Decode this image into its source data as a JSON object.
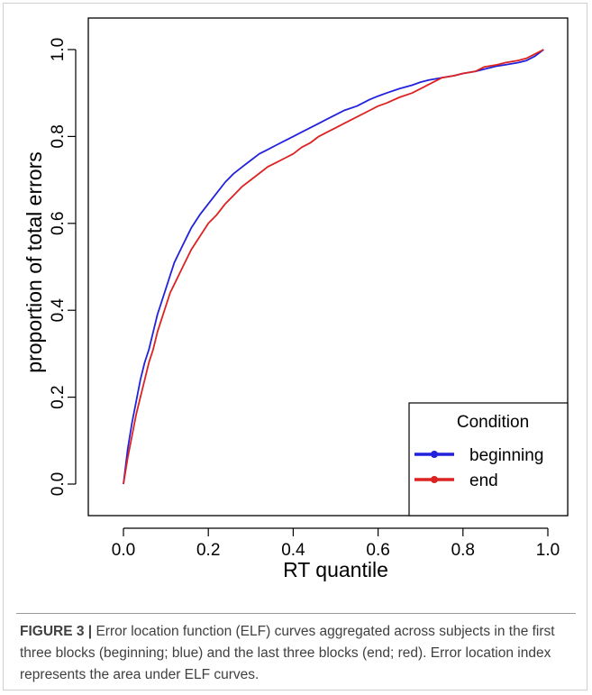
{
  "chart_data": {
    "type": "line",
    "title": "",
    "xlabel": "RT quantile",
    "ylabel": "proportion of total errors",
    "xlim": [
      0.0,
      1.0
    ],
    "ylim": [
      0.0,
      1.0
    ],
    "xticks": [
      "0.0",
      "0.2",
      "0.4",
      "0.6",
      "0.8",
      "1.0"
    ],
    "yticks": [
      "0.0",
      "0.2",
      "0.4",
      "0.6",
      "0.8",
      "1.0"
    ],
    "grid": false,
    "legend": {
      "title": "Condition",
      "position": "bottom-right"
    },
    "series": [
      {
        "name": "beginning",
        "color": "#2222dd",
        "points": [
          [
            0.0,
            0.0
          ],
          [
            0.01,
            0.08
          ],
          [
            0.02,
            0.14
          ],
          [
            0.03,
            0.19
          ],
          [
            0.04,
            0.24
          ],
          [
            0.05,
            0.28
          ],
          [
            0.06,
            0.31
          ],
          [
            0.07,
            0.35
          ],
          [
            0.08,
            0.39
          ],
          [
            0.09,
            0.42
          ],
          [
            0.1,
            0.45
          ],
          [
            0.11,
            0.48
          ],
          [
            0.12,
            0.51
          ],
          [
            0.13,
            0.53
          ],
          [
            0.14,
            0.55
          ],
          [
            0.15,
            0.57
          ],
          [
            0.16,
            0.59
          ],
          [
            0.18,
            0.62
          ],
          [
            0.2,
            0.645
          ],
          [
            0.22,
            0.67
          ],
          [
            0.24,
            0.695
          ],
          [
            0.26,
            0.715
          ],
          [
            0.28,
            0.73
          ],
          [
            0.3,
            0.745
          ],
          [
            0.32,
            0.76
          ],
          [
            0.34,
            0.77
          ],
          [
            0.36,
            0.78
          ],
          [
            0.38,
            0.79
          ],
          [
            0.4,
            0.8
          ],
          [
            0.42,
            0.81
          ],
          [
            0.44,
            0.82
          ],
          [
            0.46,
            0.83
          ],
          [
            0.48,
            0.84
          ],
          [
            0.5,
            0.85
          ],
          [
            0.52,
            0.86
          ],
          [
            0.55,
            0.87
          ],
          [
            0.58,
            0.885
          ],
          [
            0.6,
            0.893
          ],
          [
            0.62,
            0.9
          ],
          [
            0.65,
            0.91
          ],
          [
            0.68,
            0.918
          ],
          [
            0.7,
            0.925
          ],
          [
            0.72,
            0.93
          ],
          [
            0.75,
            0.935
          ],
          [
            0.78,
            0.94
          ],
          [
            0.8,
            0.945
          ],
          [
            0.83,
            0.95
          ],
          [
            0.85,
            0.955
          ],
          [
            0.88,
            0.962
          ],
          [
            0.9,
            0.965
          ],
          [
            0.93,
            0.97
          ],
          [
            0.95,
            0.975
          ],
          [
            0.97,
            0.985
          ],
          [
            0.99,
            1.0
          ]
        ]
      },
      {
        "name": "end",
        "color": "#dd2222",
        "points": [
          [
            0.0,
            0.0
          ],
          [
            0.01,
            0.06
          ],
          [
            0.02,
            0.11
          ],
          [
            0.03,
            0.16
          ],
          [
            0.04,
            0.2
          ],
          [
            0.05,
            0.24
          ],
          [
            0.06,
            0.28
          ],
          [
            0.07,
            0.31
          ],
          [
            0.08,
            0.35
          ],
          [
            0.09,
            0.38
          ],
          [
            0.1,
            0.41
          ],
          [
            0.11,
            0.44
          ],
          [
            0.12,
            0.46
          ],
          [
            0.13,
            0.48
          ],
          [
            0.14,
            0.5
          ],
          [
            0.15,
            0.52
          ],
          [
            0.16,
            0.54
          ],
          [
            0.18,
            0.57
          ],
          [
            0.2,
            0.6
          ],
          [
            0.22,
            0.62
          ],
          [
            0.24,
            0.645
          ],
          [
            0.26,
            0.665
          ],
          [
            0.28,
            0.685
          ],
          [
            0.3,
            0.7
          ],
          [
            0.32,
            0.715
          ],
          [
            0.34,
            0.73
          ],
          [
            0.36,
            0.74
          ],
          [
            0.38,
            0.75
          ],
          [
            0.4,
            0.76
          ],
          [
            0.42,
            0.775
          ],
          [
            0.44,
            0.785
          ],
          [
            0.46,
            0.8
          ],
          [
            0.48,
            0.81
          ],
          [
            0.5,
            0.82
          ],
          [
            0.52,
            0.83
          ],
          [
            0.55,
            0.845
          ],
          [
            0.58,
            0.86
          ],
          [
            0.6,
            0.87
          ],
          [
            0.62,
            0.877
          ],
          [
            0.65,
            0.89
          ],
          [
            0.68,
            0.9
          ],
          [
            0.7,
            0.91
          ],
          [
            0.72,
            0.92
          ],
          [
            0.75,
            0.935
          ],
          [
            0.78,
            0.94
          ],
          [
            0.8,
            0.945
          ],
          [
            0.83,
            0.95
          ],
          [
            0.85,
            0.96
          ],
          [
            0.88,
            0.965
          ],
          [
            0.9,
            0.97
          ],
          [
            0.93,
            0.975
          ],
          [
            0.95,
            0.98
          ],
          [
            0.97,
            0.99
          ],
          [
            0.99,
            1.0
          ]
        ]
      }
    ]
  },
  "caption": {
    "label": "FIGURE 3 |",
    "text": " Error location function (ELF) curves aggregated across subjects in the first three blocks (beginning; blue) and the last three blocks (end; red). Error location index represents the area under ELF curves."
  }
}
